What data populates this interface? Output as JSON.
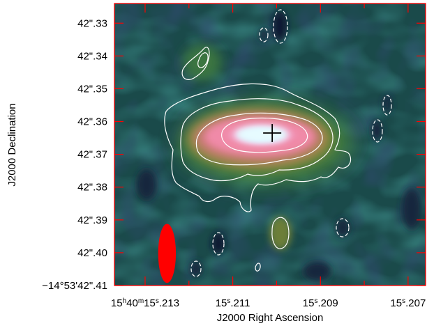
{
  "chart_data": {
    "type": "heatmap",
    "title": "",
    "xlabel": "J2000 Right Ascension",
    "ylabel": "J2000 Declination",
    "x_ticks": [
      {
        "h": "15",
        "m": "40",
        "s": "15",
        "frac": ".213"
      },
      {
        "s": "15",
        "frac": ".211"
      },
      {
        "s": "15",
        "frac": ".209"
      },
      {
        "s": "15",
        "frac": ".207"
      }
    ],
    "y_ticks": [
      "42\".33",
      "42\".34",
      "42\".35",
      "42\".36",
      "42\".37",
      "42\".38",
      "42\".39",
      "42\".40",
      "−14°53'42\".41"
    ],
    "x_tick_values_s": [
      15.213,
      15.211,
      15.209,
      15.207
    ],
    "x_minor_step_s": 0.001,
    "xlim_s": [
      15.2137,
      15.2066
    ],
    "y_tick_values_arcsec": [
      42.33,
      42.34,
      42.35,
      42.36,
      42.37,
      42.38,
      42.39,
      42.4,
      42.41
    ],
    "ylim_arcsec": [
      42.41,
      42.324
    ],
    "peak_marker": {
      "ra_s": 15.2101,
      "dec_arcsec": 42.3635,
      "symbol": "cross"
    },
    "beam": {
      "ra_s": 15.2125,
      "dec_arcsec": 42.4002,
      "major_arcsec": 0.009,
      "minor_arcsec": 0.0027,
      "color": "#ff0000"
    },
    "contours": {
      "positive_color": "#ffffff",
      "negative_color": "#ffffff",
      "negative_style": "dashed"
    },
    "colormap": [
      "#10203a",
      "#173a42",
      "#1f5a48",
      "#3f7a3c",
      "#8a8a3a",
      "#c57a6a",
      "#f08aa8",
      "#f6a2c8",
      "#dfe8ff",
      "#e8fbff"
    ],
    "frame_color": "#ff0000",
    "grid": false
  }
}
